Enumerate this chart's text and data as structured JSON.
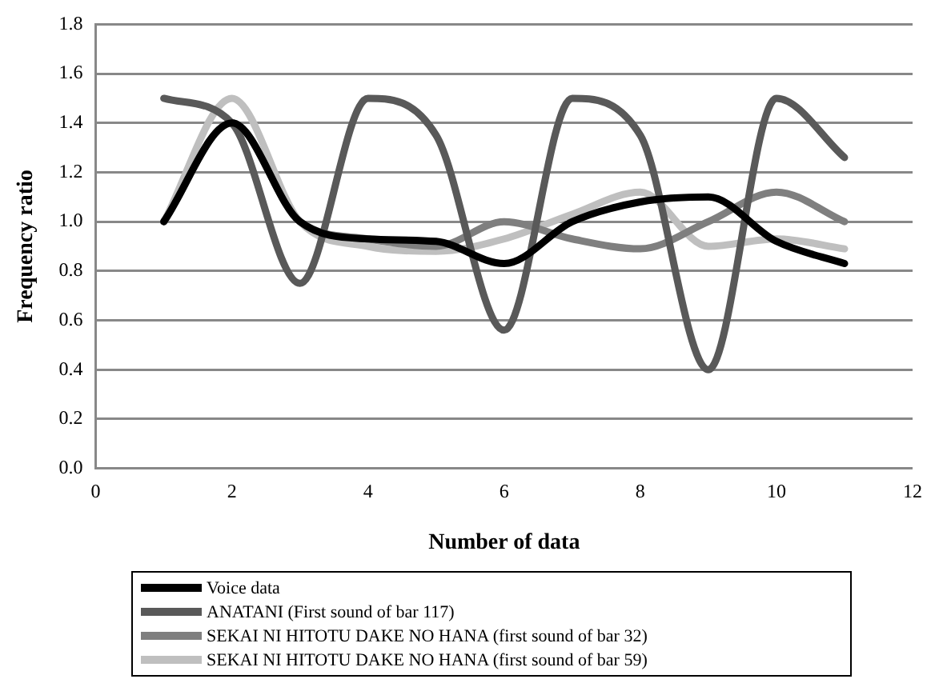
{
  "chart_data": {
    "type": "line",
    "xlabel": "Number of data",
    "ylabel": "Frequency ratio",
    "x": [
      1,
      2,
      3,
      4,
      5,
      6,
      7,
      8,
      9,
      10,
      11
    ],
    "series": [
      {
        "name": "Voice data",
        "color": "#000000",
        "values": [
          1.0,
          1.4,
          1.0,
          0.93,
          0.92,
          0.83,
          1.0,
          1.08,
          1.1,
          0.92,
          0.83
        ]
      },
      {
        "name": "ANATANI (First sound of bar 117)",
        "color": "#595959",
        "values": [
          1.5,
          1.4,
          0.75,
          1.5,
          1.35,
          0.56,
          1.5,
          1.35,
          0.4,
          1.5,
          1.26
        ]
      },
      {
        "name": "SEKAI NI HITOTU DAKE NO HANA (first sound of bar 32)",
        "color": "#7f7f7f",
        "values": [
          1.0,
          1.4,
          1.0,
          0.93,
          0.9,
          1.0,
          0.93,
          0.89,
          1.0,
          1.12,
          1.0
        ]
      },
      {
        "name": "SEKAI NI HITOTU DAKE NO HANA (first sound of bar 59)",
        "color": "#bfbfbf",
        "values": [
          1.0,
          1.5,
          1.0,
          0.9,
          0.88,
          0.93,
          1.03,
          1.12,
          0.9,
          0.93,
          0.89
        ]
      }
    ],
    "xlim": [
      0,
      12
    ],
    "xticks": [
      0,
      2,
      4,
      6,
      8,
      10,
      12
    ],
    "ylim": [
      0,
      1.8
    ],
    "yticks": [
      {
        "value": 0,
        "label": "0.0"
      },
      {
        "value": 0.2,
        "label": "0.2"
      },
      {
        "value": 0.4,
        "label": "0.4"
      },
      {
        "value": 0.6,
        "label": "0.6"
      },
      {
        "value": 0.8,
        "label": "0.8"
      },
      {
        "value": 1.0,
        "label": "1.0"
      },
      {
        "value": 1.2,
        "label": "1.2"
      },
      {
        "value": 1.4,
        "label": "1.4"
      },
      {
        "value": 1.6,
        "label": "1.6"
      },
      {
        "value": 1.8,
        "label": "1.8"
      }
    ],
    "grid": "y",
    "legend": "bottom",
    "marker": "none",
    "line_style": "solid"
  }
}
